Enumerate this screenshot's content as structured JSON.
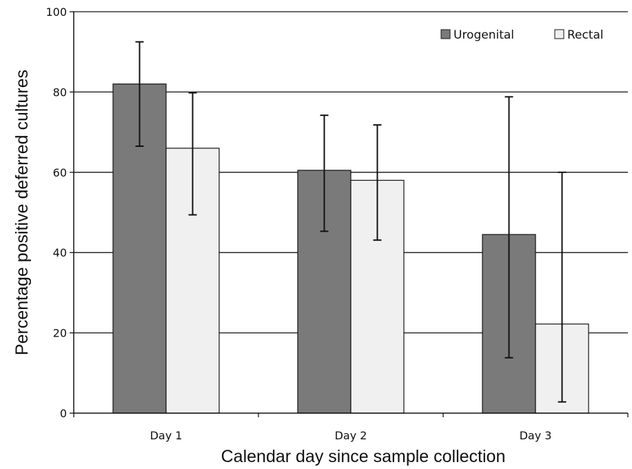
{
  "chart_data": {
    "type": "bar",
    "categories": [
      "Day 1",
      "Day 2",
      "Day 3"
    ],
    "series": [
      {
        "name": "Urogenital",
        "color": "#7a7a7a",
        "values": [
          82,
          60.5,
          44.5
        ],
        "error_low": [
          66.5,
          45.3,
          13.8
        ],
        "error_high": [
          92.5,
          74.2,
          78.8
        ]
      },
      {
        "name": "Rectal",
        "color": "#f0f0f0",
        "values": [
          66,
          58,
          22.2
        ],
        "error_low": [
          49.4,
          43.1,
          2.8
        ],
        "error_high": [
          79.8,
          71.8,
          60
        ]
      }
    ],
    "title": "",
    "xlabel": "Calendar day since sample collection",
    "ylabel": "Percentage positive deferred cultures",
    "ylim": [
      0,
      100
    ],
    "yticks": [
      "0",
      "20",
      "40",
      "60",
      "80",
      "100"
    ],
    "grid": true,
    "legend_position": "top-right"
  }
}
